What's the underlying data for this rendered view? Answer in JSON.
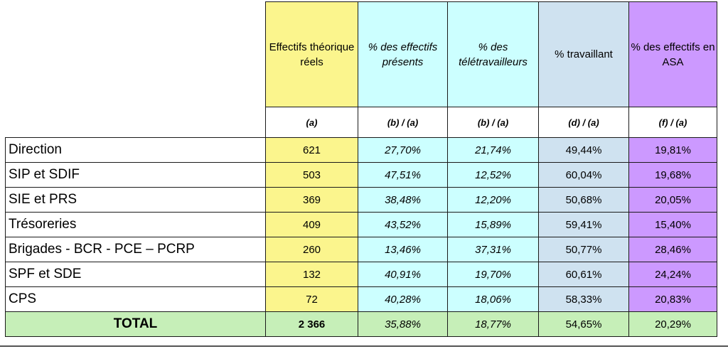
{
  "headers": {
    "effectifs": "Effectifs théorique réels",
    "presents": "% des effectifs présents",
    "teletravailleurs": "% des télétravailleurs",
    "travaillant": "% travaillant",
    "asa": "% des effectifs en ASA"
  },
  "formulas": {
    "effectifs": "(a)",
    "presents": "(b) / (a)",
    "teletravailleurs": "(b) / (a)",
    "travaillant": "(d) / (a)",
    "asa": "(f) / (a)"
  },
  "rows": [
    {
      "label": "Direction",
      "effectifs": "621",
      "presents": "27,70%",
      "teletravailleurs": "21,74%",
      "travaillant": "49,44%",
      "asa": "19,81%"
    },
    {
      "label": "SIP et SDIF",
      "effectifs": "503",
      "presents": "47,51%",
      "teletravailleurs": "12,52%",
      "travaillant": "60,04%",
      "asa": "19,68%"
    },
    {
      "label": "SIE et PRS",
      "effectifs": "369",
      "presents": "38,48%",
      "teletravailleurs": "12,20%",
      "travaillant": "50,68%",
      "asa": "20,05%"
    },
    {
      "label": "Trésoreries",
      "effectifs": "409",
      "presents": "43,52%",
      "teletravailleurs": "15,89%",
      "travaillant": "59,41%",
      "asa": "15,40%"
    },
    {
      "label": "Brigades - BCR - PCE – PCRP",
      "effectifs": "260",
      "presents": "13,46%",
      "teletravailleurs": "37,31%",
      "travaillant": "50,77%",
      "asa": "28,46%"
    },
    {
      "label": "SPF et SDE",
      "effectifs": "132",
      "presents": "40,91%",
      "teletravailleurs": "19,70%",
      "travaillant": "60,61%",
      "asa": "24,24%"
    },
    {
      "label": "CPS",
      "effectifs": "72",
      "presents": "40,28%",
      "teletravailleurs": "18,06%",
      "travaillant": "58,33%",
      "asa": "20,83%"
    }
  ],
  "total": {
    "label": "TOTAL",
    "effectifs": "2 366",
    "presents": "35,88%",
    "teletravailleurs": "18,77%",
    "travaillant": "54,65%",
    "asa": "20,29%"
  },
  "colors": {
    "effectifs": "#fbf58d",
    "presents": "#ccffff",
    "teletravailleurs": "#ccffff",
    "travaillant": "#cfe2f0",
    "asa": "#cc99ff",
    "total": "#c6efb8"
  }
}
